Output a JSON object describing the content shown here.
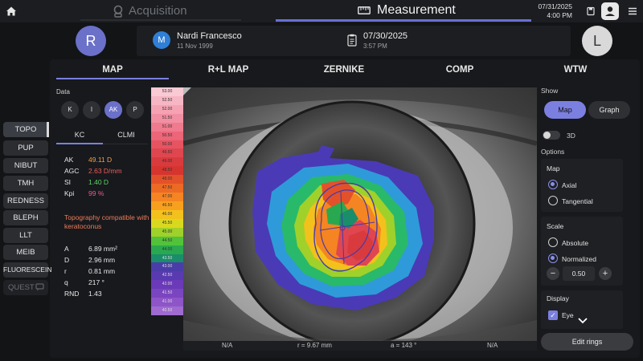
{
  "topbar": {
    "acquisition_label": "Acquisition",
    "measurement_label": "Measurement",
    "date": "07/31/2025",
    "time": "4:00 PM",
    "icons": [
      "home-icon",
      "camera-icon",
      "ruler-icon",
      "save-icon",
      "user-icon",
      "menu-icon"
    ]
  },
  "patient": {
    "right_eye_label": "R",
    "left_eye_label": "L",
    "avatar_letter": "M",
    "name": "Nardi Francesco",
    "dob": "11 Nov 1999",
    "exam_date": "07/30/2025",
    "exam_time": "3:57 PM"
  },
  "tabs": [
    "MAP",
    "R+L MAP",
    "ZERNIKE",
    "COMP",
    "WTW"
  ],
  "tools": [
    "TOPO",
    "PUP",
    "NIBUT",
    "TMH",
    "REDNESS",
    "BLEPH",
    "LLT",
    "MEIB",
    "FLUORESCEIN",
    "QUEST"
  ],
  "data_panel": {
    "label": "Data",
    "buttons": [
      "K",
      "I",
      "AK",
      "P"
    ],
    "subtabs": [
      "KC",
      "CLMI"
    ],
    "indices": [
      {
        "key": "AK",
        "value": "49.11 D",
        "color": "#f0a24a"
      },
      {
        "key": "AGC",
        "value": "2.63 D/mm",
        "color": "#ef5b5b"
      },
      {
        "key": "SI",
        "value": "1.40 D",
        "color": "#5bd46a"
      },
      {
        "key": "Kpi",
        "value": "99 %",
        "color": "#ef5b8a"
      }
    ],
    "warning": "Topography compatible with keratoconus",
    "stats": [
      {
        "key": "A",
        "value": "6.89 mm²"
      },
      {
        "key": "D",
        "value": "2.96 mm"
      },
      {
        "key": "r",
        "value": "0.81 mm"
      },
      {
        "key": "q",
        "value": "217 °"
      },
      {
        "key": "RND",
        "value": "1.43"
      }
    ]
  },
  "scale": {
    "values": [
      "53.00",
      "52.50",
      "52.00",
      "51.50",
      "51.00",
      "50.50",
      "50.00",
      "49.50",
      "49.00",
      "48.50",
      "48.00",
      "47.50",
      "47.00",
      "46.50",
      "46.00",
      "45.50",
      "45.00",
      "44.50",
      "44.00",
      "43.50",
      "43.00",
      "42.50",
      "42.00",
      "41.50",
      "41.00",
      "40.50"
    ],
    "colors": [
      "#f9c9d4",
      "#f7b6c4",
      "#f5a3b4",
      "#f38fa3",
      "#f07a8e",
      "#ec6578",
      "#e65462",
      "#e0464f",
      "#d93a3e",
      "#d6352f",
      "#e3512a",
      "#ec6a24",
      "#f48522",
      "#f7a01f",
      "#f3c11c",
      "#d9d81f",
      "#9fd12a",
      "#52c23a",
      "#2aa84f",
      "#1a8d6a",
      "#4b3da8",
      "#5a3ab0",
      "#6a3ab8",
      "#7b45c0",
      "#8d55c8",
      "#9f6bd0"
    ]
  },
  "map_info": {
    "left": "N/A",
    "radius": "r = 9.67 mm",
    "angle": "a = 143 °",
    "right": "N/A"
  },
  "right_panel": {
    "show_label": "Show",
    "map_button": "Map",
    "graph_button": "Graph",
    "three_d_label": "3D",
    "options_label": "Options",
    "map_group_title": "Map",
    "axial_label": "Axial",
    "tangential_label": "Tangential",
    "scale_group_title": "Scale",
    "absolute_label": "Absolute",
    "normalized_label": "Normalized",
    "step_value": "0.50",
    "display_group_title": "Display",
    "eye_label": "Eye",
    "edit_rings_label": "Edit rings"
  }
}
